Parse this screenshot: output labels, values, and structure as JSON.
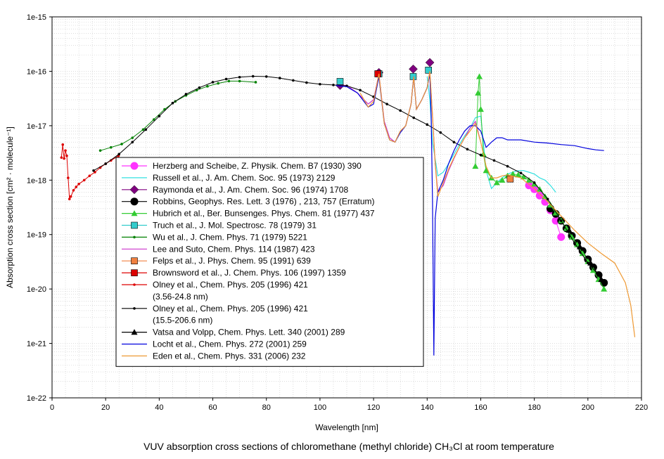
{
  "chart_data": {
    "type": "line",
    "title": "",
    "caption": "VUV absorption cross sections of chloromethane (methyl chloride) CH₃Cl at room temperature",
    "xlabel": "Wavelength [nm]",
    "ylabel": "Absorption cross section [cm² · molecule⁻¹]",
    "xlim": [
      0,
      220
    ],
    "ylim": [
      1e-22,
      1e-15
    ],
    "yscale": "log",
    "xticks": [
      0,
      20,
      40,
      60,
      80,
      100,
      120,
      140,
      160,
      180,
      200,
      220
    ],
    "ytick_labels": [
      "1e-15",
      "1e-16",
      "1e-17",
      "1e-18",
      "1e-19",
      "1e-20",
      "1e-21",
      "1e-22"
    ],
    "grid": true,
    "legend_position": "lower-left",
    "series": [
      {
        "name": "Herzberg and Scheibe, Z. Physik. Chem. B7 (1930) 390",
        "color": "#ff33ff",
        "marker": "circle",
        "x": [
          178,
          180,
          182,
          184,
          186,
          188,
          190
        ],
        "y": [
          8e-19,
          6.8e-19,
          5.2e-19,
          4e-19,
          2.8e-19,
          1.8e-19,
          9e-20
        ]
      },
      {
        "name": "Russell et al., J. Am. Chem. Soc. 95 (1973) 2129",
        "color": "#33e0e0",
        "marker": "none",
        "x": [
          140,
          141,
          142,
          144,
          146,
          148,
          150,
          152,
          154,
          156,
          158,
          160,
          162,
          164,
          166,
          168,
          170,
          172,
          174,
          176,
          178,
          180,
          182,
          184,
          186,
          188
        ],
        "y": [
          8e-17,
          3e-17,
          5e-18,
          1.2e-18,
          1.4e-18,
          2e-18,
          3e-18,
          4.5e-18,
          6.5e-18,
          9e-18,
          1.4e-17,
          1.5e-17,
          1.5e-18,
          7e-19,
          9e-19,
          1.1e-18,
          1.3e-18,
          1.4e-18,
          1.5e-18,
          1.5e-18,
          1.4e-18,
          1.3e-18,
          1.1e-18,
          1e-18,
          8e-19,
          6e-19
        ]
      },
      {
        "name": "Raymonda et al., J. Am. Chem. Soc. 96 (1974) 1708",
        "color": "#800080",
        "marker": "diamond",
        "x": [
          107.5,
          122,
          134.8,
          141
        ],
        "y": [
          5.5e-17,
          9.5e-17,
          1.1e-16,
          1.45e-16
        ]
      },
      {
        "name": "Robbins, Geophys. Res. Lett. 3 (1976) , 213, 757 (Erratum)",
        "color": "#000000",
        "marker": "circle",
        "x": [
          186,
          188,
          190,
          192,
          194,
          196,
          198,
          200,
          202,
          204,
          206
        ],
        "y": [
          3e-19,
          2.4e-19,
          1.8e-19,
          1.3e-19,
          9.5e-20,
          7e-20,
          5e-20,
          3.5e-20,
          2.5e-20,
          1.8e-20,
          1.3e-20
        ]
      },
      {
        "name": "Hubrich et al., Ber. Bunsenges. Phys. Chem. 81 (1977) 437",
        "color": "#33cc33",
        "marker": "triangle",
        "x": [
          158,
          159,
          159.5,
          160,
          161,
          162,
          164,
          166,
          168,
          170,
          172,
          174,
          176,
          178,
          180,
          182,
          184,
          186,
          188,
          190,
          192,
          194,
          196,
          198,
          200,
          202,
          204,
          206
        ],
        "y": [
          1.8e-18,
          4e-17,
          8e-17,
          2e-17,
          3e-18,
          1.5e-18,
          1.1e-18,
          9e-19,
          1e-18,
          1.2e-18,
          1.3e-18,
          1.25e-18,
          1.15e-18,
          1e-18,
          8.5e-19,
          6.8e-19,
          5e-19,
          3.5e-19,
          2.5e-19,
          1.8e-19,
          1.3e-19,
          9e-20,
          6.5e-20,
          4.5e-20,
          3.2e-20,
          2.2e-20,
          1.5e-20,
          1e-20
        ]
      },
      {
        "name": "Truch et al., J. Mol. Spectrosc. 78 (1979) 31",
        "color": "#33cccc",
        "marker": "square",
        "x": [
          107.5,
          122,
          134.8,
          140.5
        ],
        "y": [
          6.5e-17,
          9e-17,
          8e-17,
          1.05e-16
        ]
      },
      {
        "name": "Wu et al., J. Chem. Phys. 71 (1979) 5221",
        "color": "#008000",
        "marker": "small-circle",
        "x": [
          18,
          22,
          26,
          30,
          34,
          38,
          42,
          46,
          50,
          54,
          58,
          62,
          66,
          70,
          76
        ],
        "y": [
          3.5e-18,
          4e-18,
          4.6e-18,
          6e-18,
          8.5e-18,
          1.3e-17,
          2e-17,
          2.8e-17,
          3.6e-17,
          4.5e-17,
          5.3e-17,
          6e-17,
          6.6e-17,
          6.6e-17,
          6.3e-17
        ]
      },
      {
        "name": "Lee and Suto, Chem. Phys. 114 (1987) 423",
        "color": "#cc33cc",
        "marker": "none",
        "x": [
          106,
          110,
          114,
          118,
          120,
          122,
          124,
          126,
          128,
          130,
          132,
          134,
          135,
          136,
          138,
          140,
          141,
          142,
          143,
          144,
          146,
          148,
          150,
          152,
          154,
          156,
          158,
          160
        ],
        "y": [
          5.5e-17,
          5.5e-17,
          4e-17,
          2.5e-17,
          3e-17,
          9e-17,
          1.2e-17,
          6e-18,
          5e-18,
          8e-18,
          1e-17,
          2.5e-17,
          8e-17,
          2e-17,
          3e-17,
          5e-17,
          1e-16,
          1.5e-17,
          2e-18,
          6e-19,
          8e-19,
          1.5e-18,
          2.5e-18,
          4e-18,
          6e-18,
          9e-18,
          1.2e-17,
          5e-18
        ]
      },
      {
        "name": "Felps et al., J. Phys. Chem. 95 (1991) 639",
        "color": "#f08040",
        "marker": "square",
        "x": [
          171
        ],
        "y": [
          1.05e-18
        ]
      },
      {
        "name": "Brownsword et al., J. Chem. Phys. 106 (1997) 1359",
        "color": "#dd0000",
        "marker": "square",
        "x": [
          121.6
        ],
        "y": [
          9e-17
        ]
      },
      {
        "name": "Olney et al., Chem. Phys. 205 (1996) 421",
        "name_note": "(3.56-24.8 nm)",
        "color": "#dd0000",
        "marker": "small-circle",
        "x": [
          3.5,
          4,
          4.5,
          5,
          5.5,
          6,
          6.5,
          7,
          8,
          9,
          10,
          12,
          14,
          16,
          18,
          20,
          22,
          24.8
        ],
        "y": [
          2.6e-18,
          4.5e-18,
          2.5e-18,
          3.5e-18,
          2.8e-18,
          1.1e-18,
          4.5e-19,
          5e-19,
          6.5e-19,
          7.5e-19,
          8.5e-19,
          1e-18,
          1.2e-18,
          1.4e-18,
          1.7e-18,
          2e-18,
          2.3e-18,
          2.8e-18
        ]
      },
      {
        "name": "Olney et al., Chem. Phys. 205 (1996) 421",
        "name_note": "(15.5-206.6 nm)",
        "color": "#000000",
        "marker": "small-circle",
        "x": [
          15.5,
          20,
          25,
          30,
          35,
          40,
          45,
          50,
          55,
          60,
          65,
          70,
          75,
          80,
          85,
          90,
          95,
          100,
          105,
          110,
          115,
          120,
          125,
          130,
          135,
          140,
          145,
          150,
          155,
          160,
          165,
          170,
          175,
          180,
          185,
          190,
          195,
          200,
          206.6
        ],
        "y": [
          1.5e-18,
          2e-18,
          3e-18,
          5e-18,
          8.5e-18,
          1.5e-17,
          2.6e-17,
          3.8e-17,
          5e-17,
          6.3e-17,
          7.2e-17,
          7.8e-17,
          8.1e-17,
          8e-17,
          7.5e-17,
          6.8e-17,
          6.2e-17,
          5.8e-17,
          5.6e-17,
          5.4e-17,
          4.5e-17,
          3.4e-17,
          2.5e-17,
          1.9e-17,
          1.4e-17,
          1.05e-17,
          7.5e-18,
          5e-18,
          3.7e-18,
          2.9e-18,
          2.3e-18,
          1.8e-18,
          1.35e-18,
          9e-19,
          4.5e-19,
          1.8e-19,
          7e-20,
          3e-20,
          1.3e-20
        ]
      },
      {
        "name": "Vatsa and Volpp, Chem. Phys. Lett. 340 (2001) 289",
        "color": "#000000",
        "marker": "triangle",
        "x": [
          193,
          197,
          201,
          205
        ],
        "y": [
          1.2e-19,
          6e-20,
          3e-20,
          1.5e-20
        ]
      },
      {
        "name": "Locht et al., Chem. Phys. 272 (2001) 259",
        "color": "#0000dd",
        "marker": "none",
        "x": [
          106,
          110,
          114,
          118,
          120,
          122,
          124,
          126,
          128,
          130,
          132,
          134,
          135,
          136,
          138,
          140,
          141,
          141.5,
          142,
          142.5,
          143,
          144,
          146,
          148,
          150,
          152,
          154,
          156,
          158,
          160,
          162,
          164,
          166,
          168,
          170,
          175,
          180,
          185,
          190,
          195,
          200,
          203,
          206
        ],
        "y": [
          5.5e-17,
          5.2e-17,
          4e-17,
          2.2e-17,
          2.5e-17,
          8e-17,
          1.1e-17,
          5.5e-18,
          5e-18,
          7.5e-18,
          1e-17,
          2.5e-17,
          8e-17,
          2e-17,
          3e-17,
          5e-17,
          9e-17,
          1.5e-17,
          4e-19,
          6e-22,
          2e-19,
          6e-19,
          1e-18,
          2e-18,
          3.5e-18,
          5.5e-18,
          8e-18,
          1e-17,
          1e-17,
          8e-18,
          4e-18,
          5e-18,
          6e-18,
          6e-18,
          5.5e-18,
          5.5e-18,
          5e-18,
          4.8e-18,
          4.5e-18,
          4.3e-18,
          3.8e-18,
          3.6e-18,
          3.5e-18
        ]
      },
      {
        "name": "Eden et al., Chem. Phys. 331 (2006) 232",
        "color": "#ee9933",
        "marker": "none",
        "x": [
          115,
          118,
          120,
          122,
          124,
          126,
          128,
          130,
          132,
          134,
          135,
          136,
          138,
          140,
          141,
          142,
          143,
          144,
          146,
          148,
          150,
          152,
          154,
          156,
          158,
          160,
          162,
          164,
          166,
          168,
          170,
          175,
          180,
          185,
          190,
          195,
          200,
          205,
          210,
          214,
          216,
          217.5
        ],
        "y": [
          4e-17,
          2.2e-17,
          2.8e-17,
          9e-17,
          1.1e-17,
          5.5e-18,
          5e-18,
          8e-18,
          1e-17,
          2.5e-17,
          8e-17,
          2e-17,
          3e-17,
          5e-17,
          1e-16,
          1.5e-17,
          2e-18,
          5e-19,
          9e-19,
          1.6e-18,
          2.6e-18,
          4e-18,
          6e-18,
          8e-18,
          1.1e-17,
          5e-18,
          1.8e-18,
          1.1e-18,
          1.1e-18,
          1.2e-18,
          1.25e-18,
          1.1e-18,
          7e-19,
          4e-19,
          2.2e-19,
          1.2e-19,
          7e-20,
          4.5e-20,
          3e-20,
          1.3e-20,
          5e-21,
          1.3e-21
        ]
      }
    ]
  }
}
